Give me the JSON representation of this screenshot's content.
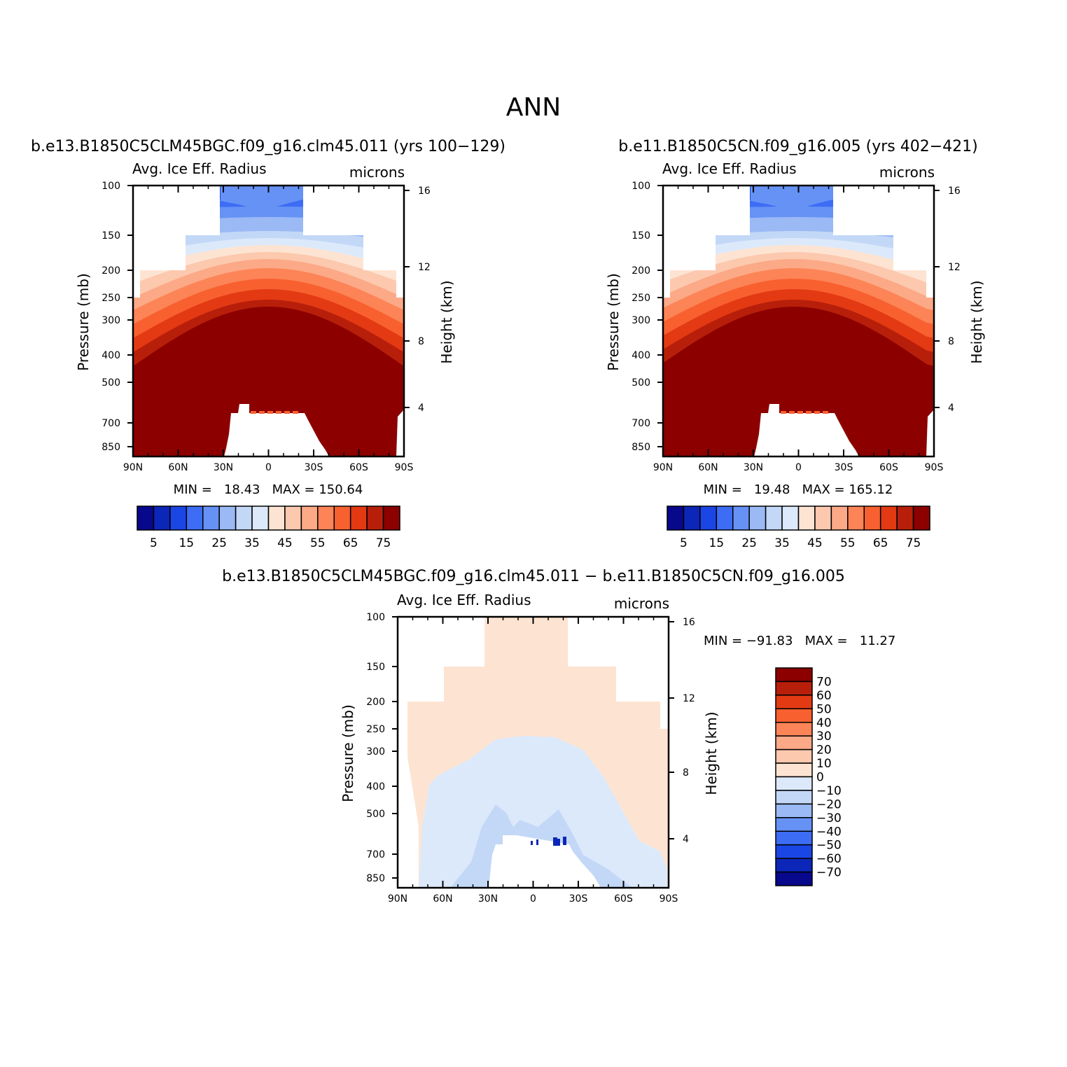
{
  "page": {
    "title": "ANN"
  },
  "panels": [
    {
      "id": "p1",
      "run_label": "b.e13.B1850C5CLM45BGC.f09_g16.clm45.011 (yrs 100−129)",
      "var_label": "Avg. Ice Eff. Radius",
      "units": "microns",
      "stats_text": "MIN =   18.43   MAX = 150.64",
      "kind": "field"
    },
    {
      "id": "p2",
      "run_label": "b.e11.B1850C5CN.f09_g16.005 (yrs 402−421)",
      "var_label": "Avg. Ice Eff. Radius",
      "units": "microns",
      "stats_text": "MIN =   19.48   MAX = 165.12",
      "kind": "field"
    },
    {
      "id": "p3",
      "run_label": "b.e13.B1850C5CLM45BGC.f09_g16.clm45.011 − b.e11.B1850C5CN.f09_g16.005",
      "var_label": "Avg. Ice Eff. Radius",
      "units": "microns",
      "stats_text": "MIN = −91.83   MAX =   11.27",
      "kind": "diff"
    }
  ],
  "axes": {
    "ylabel": "Pressure (mb)",
    "ylabel_right": "Height (km)",
    "x_ticks": [
      "90N",
      "60N",
      "30N",
      "0",
      "30S",
      "60S",
      "90S"
    ],
    "y_ticks": [
      "100",
      "150",
      "200",
      "250",
      "300",
      "400",
      "500",
      "700",
      "850"
    ],
    "y_ticks_right": [
      "16",
      "12",
      "8",
      "4"
    ]
  },
  "colorbars": {
    "field": {
      "labels": [
        "5",
        "15",
        "25",
        "35",
        "45",
        "55",
        "65",
        "75"
      ],
      "colors": [
        "#08088c",
        "#0b26b8",
        "#1a46e6",
        "#3d6cf5",
        "#6692f5",
        "#9ab9f5",
        "#c3d8f7",
        "#dce9fb",
        "#fde4d2",
        "#fcc9ae",
        "#fca987",
        "#fc8457",
        "#f86030",
        "#e33a14",
        "#b81f0a",
        "#8c0000"
      ]
    },
    "diff": {
      "labels": [
        "70",
        "60",
        "50",
        "40",
        "30",
        "20",
        "10",
        "0",
        "−10",
        "−20",
        "−30",
        "−40",
        "−50",
        "−60",
        "−70"
      ],
      "colors": [
        "#8c0000",
        "#b81f0a",
        "#e33a14",
        "#f86030",
        "#fc8457",
        "#fca987",
        "#fcc9ae",
        "#fde4d2",
        "#dce9fb",
        "#c3d8f7",
        "#9ab9f5",
        "#6692f5",
        "#3d6cf5",
        "#1a46e6",
        "#0b26b8",
        "#08088c"
      ]
    }
  },
  "chart_data": [
    {
      "type": "heatmap",
      "title": "b.e13.B1850C5CLM45BGC.f09_g16.clm45.011 (yrs 100−129)",
      "variable": "Avg. Ice Eff. Radius",
      "units": "microns",
      "x": [
        "90N",
        "60N",
        "30N",
        "0",
        "30S",
        "60S",
        "90S"
      ],
      "y_pressure_mb": [
        100,
        150,
        200,
        250,
        300,
        400,
        500,
        700,
        850
      ],
      "y_height_km": [
        16,
        12,
        8,
        4
      ],
      "min": 18.43,
      "max": 150.64,
      "contour_levels": [
        5,
        10,
        15,
        20,
        25,
        30,
        35,
        40,
        45,
        50,
        55,
        60,
        65,
        70,
        75
      ]
    },
    {
      "type": "heatmap",
      "title": "b.e11.B1850C5CN.f09_g16.005 (yrs 402−421)",
      "variable": "Avg. Ice Eff. Radius",
      "units": "microns",
      "x": [
        "90N",
        "60N",
        "30N",
        "0",
        "30S",
        "60S",
        "90S"
      ],
      "y_pressure_mb": [
        100,
        150,
        200,
        250,
        300,
        400,
        500,
        700,
        850
      ],
      "y_height_km": [
        16,
        12,
        8,
        4
      ],
      "min": 19.48,
      "max": 165.12,
      "contour_levels": [
        5,
        10,
        15,
        20,
        25,
        30,
        35,
        40,
        45,
        50,
        55,
        60,
        65,
        70,
        75
      ]
    },
    {
      "type": "heatmap",
      "title": "b.e13.B1850C5CLM45BGC.f09_g16.clm45.011 − b.e11.B1850C5CN.f09_g16.005",
      "variable": "Avg. Ice Eff. Radius",
      "units": "microns",
      "x": [
        "90N",
        "60N",
        "30N",
        "0",
        "30S",
        "60S",
        "90S"
      ],
      "y_pressure_mb": [
        100,
        150,
        200,
        250,
        300,
        400,
        500,
        700,
        850
      ],
      "y_height_km": [
        16,
        12,
        8,
        4
      ],
      "min": -91.83,
      "max": 11.27,
      "contour_levels": [
        -70,
        -60,
        -50,
        -40,
        -30,
        -20,
        -10,
        0,
        10,
        20,
        30,
        40,
        50,
        60,
        70
      ]
    }
  ]
}
